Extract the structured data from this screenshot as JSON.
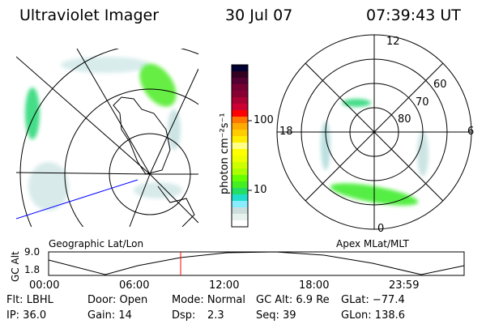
{
  "header": {
    "title": "Ultraviolet Imager",
    "date": "30 Jul 07",
    "time": "07:39:43 UT"
  },
  "left_panel": {
    "label": "Geographic Lat/Lon"
  },
  "right_panel": {
    "label": "Apex MLat/MLT",
    "mlt_labels": [
      "12",
      "18",
      "6",
      "0"
    ],
    "lat_labels": [
      "60",
      "70",
      "80"
    ]
  },
  "colorbar": {
    "label": "photon cm⁻²s⁻¹",
    "tick_labels": [
      "100",
      "10"
    ],
    "colors": [
      "#000033",
      "#330022",
      "#550033",
      "#770033",
      "#880033",
      "#aa0033",
      "#cc0033",
      "#ff0000",
      "#ff7700",
      "#ffaa00",
      "#ffcc00",
      "#ffee00",
      "#ffff88",
      "#ffff00",
      "#eeff00",
      "#ccff00",
      "#aaff00",
      "#66ff00",
      "#44ee22",
      "#22dd66",
      "#22ddcc",
      "#88eeff",
      "#ccdddd",
      "#e8f2ec",
      "#ffffff"
    ]
  },
  "altitude_plot": {
    "ylabel": "GC Alt",
    "yticks": [
      "9.0",
      "1.8"
    ],
    "xticks": [
      "00:00",
      "06:00",
      "12:00",
      "18:00",
      "23:59"
    ],
    "current_time_color": "#ff0000"
  },
  "info": {
    "filter": "Flt: LBHL",
    "door": "Door: Open",
    "mode": "Mode: Normal",
    "gc_alt": "GC Alt: 6.9 Re",
    "glat": "GLat: −77.4",
    "ip": "IP: 36.0",
    "gain": "Gain: 14",
    "dsp_label": "Dsp:",
    "dsp_value": "2.3",
    "seq": "Seq: 39",
    "glon": "GLon: 138.6"
  }
}
